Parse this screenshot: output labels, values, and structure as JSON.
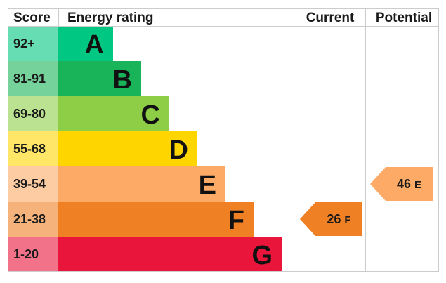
{
  "headers": {
    "score": "Score",
    "energy_rating": "Energy rating",
    "current": "Current",
    "potential": "Potential"
  },
  "chart_data": {
    "type": "table",
    "bands": [
      {
        "letter": "A",
        "range": "92+",
        "color": "#00c781",
        "light": "#66ddb3"
      },
      {
        "letter": "B",
        "range": "81-91",
        "color": "#19b459",
        "light": "#75d29b"
      },
      {
        "letter": "C",
        "range": "69-80",
        "color": "#8dce46",
        "light": "#bbe290"
      },
      {
        "letter": "D",
        "range": "55-68",
        "color": "#ffd500",
        "light": "#ffe666"
      },
      {
        "letter": "E",
        "range": "39-54",
        "color": "#fcaa65",
        "light": "#fdcca3"
      },
      {
        "letter": "F",
        "range": "21-38",
        "color": "#ef8023",
        "light": "#f5b37b"
      },
      {
        "letter": "G",
        "range": "1-20",
        "color": "#e9153b",
        "light": "#f27389"
      }
    ],
    "current": {
      "score": 26,
      "letter": "F",
      "label": "26 F"
    },
    "potential": {
      "score": 46,
      "letter": "E",
      "label": "46 E"
    }
  }
}
